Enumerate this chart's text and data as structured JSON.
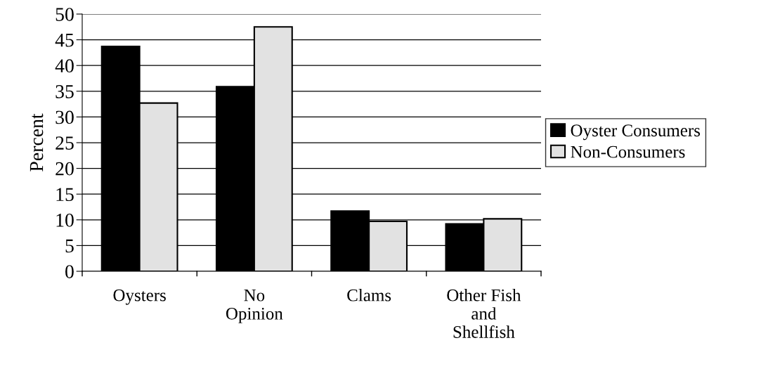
{
  "chart_data": {
    "type": "bar",
    "ylabel": "Percent",
    "categories": [
      "Oysters",
      "No\nOpinion",
      "Clams",
      "Other Fish\nand\nShellfish"
    ],
    "series": [
      {
        "name": "Oyster Consumers",
        "color": "#000000",
        "values": [
          43.7,
          35.9,
          11.7,
          9.2
        ]
      },
      {
        "name": "Non-Consumers",
        "color": "#e2e2e2",
        "values": [
          32.7,
          47.5,
          9.7,
          10.2
        ]
      }
    ],
    "ylim": [
      0,
      50
    ],
    "yticks": [
      0,
      5,
      10,
      15,
      20,
      25,
      30,
      35,
      40,
      45,
      50
    ],
    "grid": "y",
    "legend": "right"
  }
}
